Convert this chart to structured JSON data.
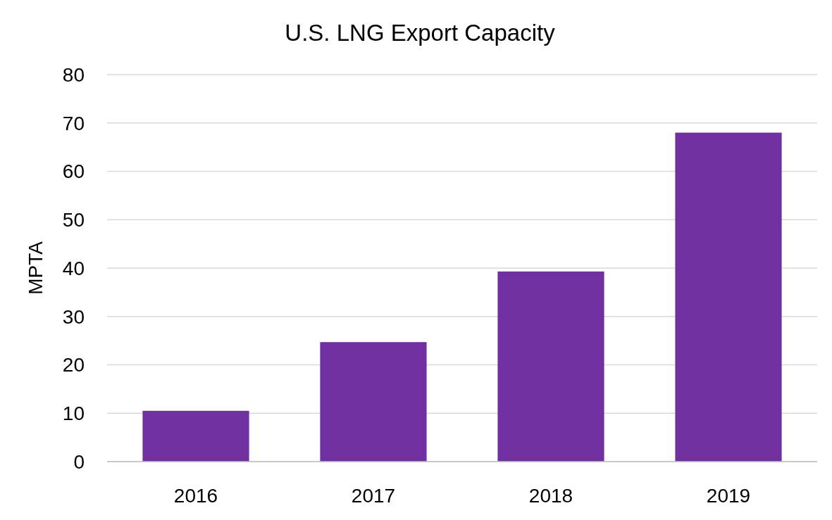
{
  "chart_data": {
    "type": "bar",
    "title": "U.S. LNG Export Capacity",
    "ylabel": "MPTA",
    "categories": [
      "2016",
      "2017",
      "2018",
      "2019"
    ],
    "values": [
      10.5,
      24.7,
      39.3,
      68
    ],
    "color": "#7030a0",
    "ylim": [
      0,
      80
    ],
    "yticks": [
      0,
      10,
      20,
      30,
      40,
      50,
      60,
      70,
      80
    ],
    "grid": "y"
  }
}
